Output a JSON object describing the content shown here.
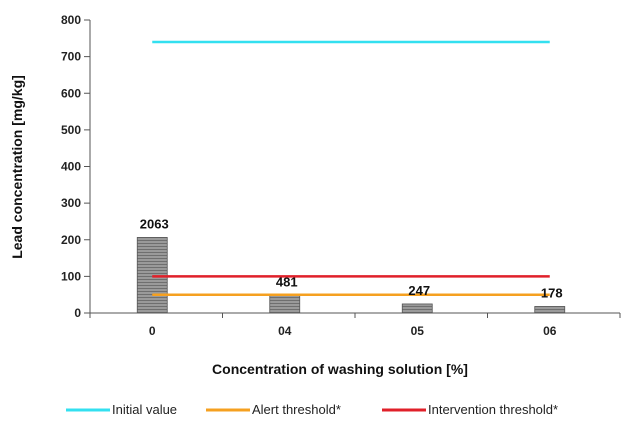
{
  "chart_data": {
    "type": "bar",
    "categories": [
      "0",
      "04",
      "05",
      "06"
    ],
    "values": [
      206.3,
      48.1,
      24.7,
      17.8
    ],
    "data_labels": [
      "2063",
      "481",
      "247",
      "178"
    ],
    "xlabel": "Concentration of washing solution [%]",
    "ylabel": "Lead concentration [mg/kg]",
    "ylim": [
      0,
      800
    ],
    "yticks": [
      0,
      100,
      200,
      300,
      400,
      500,
      600,
      700,
      800
    ],
    "ytick_labels": [
      "0",
      "100",
      "200",
      "300",
      "400",
      "500",
      "600",
      "700",
      "800"
    ],
    "grid": false,
    "legend_position": "bottom",
    "bar_color": "#8c8c8c",
    "reference_lines": [
      {
        "name": "Initial value",
        "value": 740,
        "color": "#33e0f0"
      },
      {
        "name": "Alert threshold*",
        "value": 50,
        "color": "#f5a020"
      },
      {
        "name": "Intervention threshold*",
        "value": 100,
        "color": "#e0202a"
      }
    ]
  }
}
